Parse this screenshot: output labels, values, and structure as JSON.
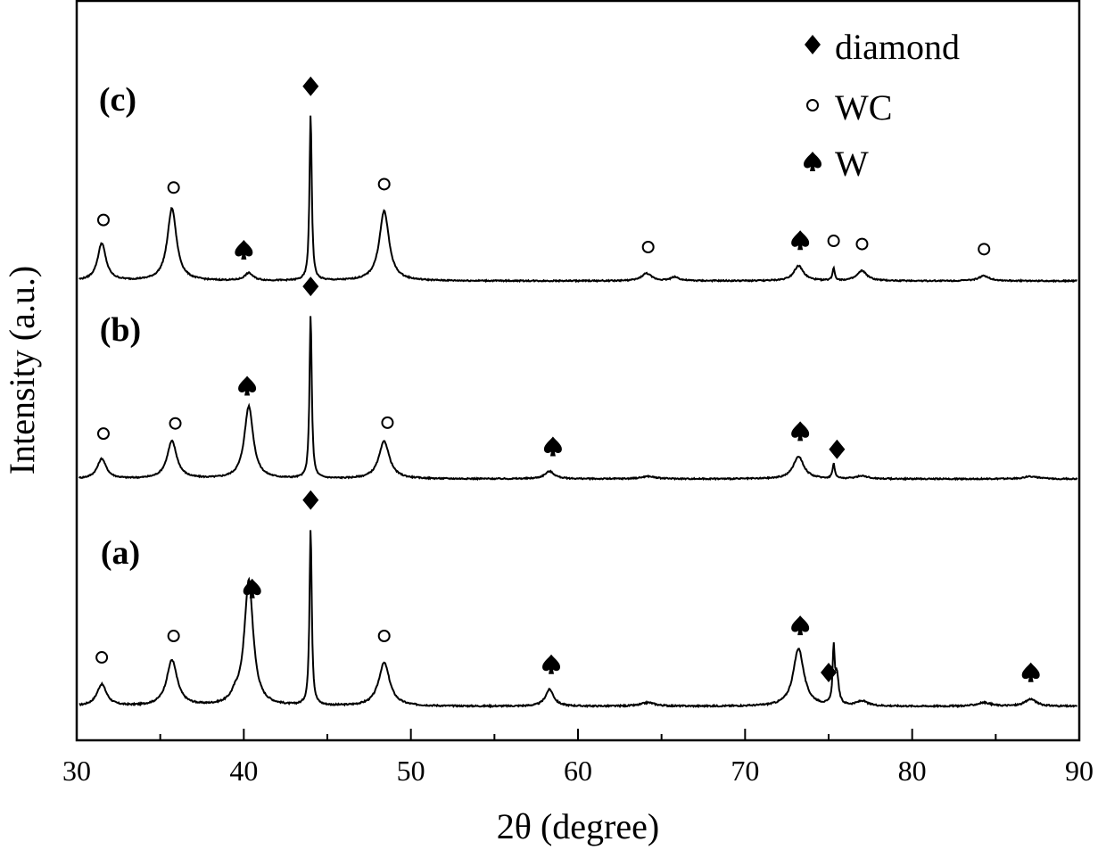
{
  "chart_data": {
    "type": "line",
    "xlabel": "2θ (degree)",
    "ylabel": "Intensity (a.u.)",
    "xlim": [
      30,
      90
    ],
    "xticks": [
      30,
      40,
      50,
      60,
      70,
      80,
      90
    ],
    "y_ticks_shown": false,
    "grid": false,
    "legend_position": "top-right",
    "legend": [
      {
        "marker": "diamond",
        "label": "diamond"
      },
      {
        "marker": "circle",
        "label": "WC"
      },
      {
        "marker": "spade",
        "label": "W"
      }
    ],
    "series": [
      {
        "name": "(a)",
        "baseline": 0.0,
        "noise": 0.006,
        "peaks": [
          {
            "x": 31.5,
            "h": 0.09,
            "w": 0.35
          },
          {
            "x": 35.7,
            "h": 0.19,
            "w": 0.38
          },
          {
            "x": 39.5,
            "h": 0.03,
            "w": 0.3
          },
          {
            "x": 40.3,
            "h": 0.52,
            "w": 0.32
          },
          {
            "x": 44.0,
            "h": 0.74,
            "w": 0.08
          },
          {
            "x": 48.4,
            "h": 0.18,
            "w": 0.4
          },
          {
            "x": 58.3,
            "h": 0.07,
            "w": 0.3
          },
          {
            "x": 64.2,
            "h": 0.015,
            "w": 0.5
          },
          {
            "x": 73.2,
            "h": 0.24,
            "w": 0.38
          },
          {
            "x": 75.3,
            "h": 0.23,
            "w": 0.07
          },
          {
            "x": 75.5,
            "h": 0.12,
            "w": 0.12
          },
          {
            "x": 77.0,
            "h": 0.02,
            "w": 0.4
          },
          {
            "x": 84.3,
            "h": 0.015,
            "w": 0.5
          },
          {
            "x": 87.1,
            "h": 0.03,
            "w": 0.4
          }
        ],
        "markers": [
          {
            "x": 31.5,
            "type": "circle"
          },
          {
            "x": 35.8,
            "type": "circle"
          },
          {
            "x": 40.5,
            "type": "spade"
          },
          {
            "x": 44.0,
            "type": "diamond"
          },
          {
            "x": 48.4,
            "type": "circle"
          },
          {
            "x": 58.4,
            "type": "spade"
          },
          {
            "x": 73.3,
            "type": "spade"
          },
          {
            "x": 75.0,
            "type": "diamond"
          },
          {
            "x": 87.1,
            "type": "spade"
          }
        ]
      },
      {
        "name": "(b)",
        "baseline": 0.0,
        "noise": 0.005,
        "peaks": [
          {
            "x": 31.5,
            "h": 0.08,
            "w": 0.32
          },
          {
            "x": 35.7,
            "h": 0.15,
            "w": 0.35
          },
          {
            "x": 40.3,
            "h": 0.29,
            "w": 0.32
          },
          {
            "x": 44.0,
            "h": 0.66,
            "w": 0.08
          },
          {
            "x": 48.4,
            "h": 0.15,
            "w": 0.38
          },
          {
            "x": 58.3,
            "h": 0.03,
            "w": 0.35
          },
          {
            "x": 64.2,
            "h": 0.01,
            "w": 0.5
          },
          {
            "x": 73.2,
            "h": 0.09,
            "w": 0.38
          },
          {
            "x": 75.3,
            "h": 0.06,
            "w": 0.08
          },
          {
            "x": 77.0,
            "h": 0.012,
            "w": 0.4
          },
          {
            "x": 87.1,
            "h": 0.01,
            "w": 0.5
          }
        ],
        "markers": [
          {
            "x": 31.6,
            "type": "circle"
          },
          {
            "x": 35.9,
            "type": "circle"
          },
          {
            "x": 40.2,
            "type": "spade"
          },
          {
            "x": 44.0,
            "type": "diamond"
          },
          {
            "x": 48.6,
            "type": "circle"
          },
          {
            "x": 58.5,
            "type": "spade"
          },
          {
            "x": 73.3,
            "type": "spade"
          },
          {
            "x": 75.5,
            "type": "diamond"
          }
        ]
      },
      {
        "name": "(c)",
        "baseline": 0.0,
        "noise": 0.005,
        "peaks": [
          {
            "x": 31.5,
            "h": 0.15,
            "w": 0.3
          },
          {
            "x": 35.7,
            "h": 0.29,
            "w": 0.33
          },
          {
            "x": 40.3,
            "h": 0.03,
            "w": 0.3
          },
          {
            "x": 44.0,
            "h": 0.67,
            "w": 0.08
          },
          {
            "x": 48.4,
            "h": 0.28,
            "w": 0.35
          },
          {
            "x": 64.1,
            "h": 0.03,
            "w": 0.35
          },
          {
            "x": 65.8,
            "h": 0.015,
            "w": 0.3
          },
          {
            "x": 73.2,
            "h": 0.06,
            "w": 0.35
          },
          {
            "x": 75.3,
            "h": 0.05,
            "w": 0.08
          },
          {
            "x": 77.0,
            "h": 0.04,
            "w": 0.35
          },
          {
            "x": 84.3,
            "h": 0.02,
            "w": 0.4
          }
        ],
        "markers": [
          {
            "x": 31.6,
            "type": "circle"
          },
          {
            "x": 35.8,
            "type": "circle"
          },
          {
            "x": 40.0,
            "type": "spade"
          },
          {
            "x": 44.0,
            "type": "diamond"
          },
          {
            "x": 48.4,
            "type": "circle"
          },
          {
            "x": 64.2,
            "type": "circle"
          },
          {
            "x": 73.3,
            "type": "spade"
          },
          {
            "x": 75.3,
            "type": "circle"
          },
          {
            "x": 77.0,
            "type": "circle"
          },
          {
            "x": 84.3,
            "type": "circle"
          }
        ]
      }
    ]
  }
}
